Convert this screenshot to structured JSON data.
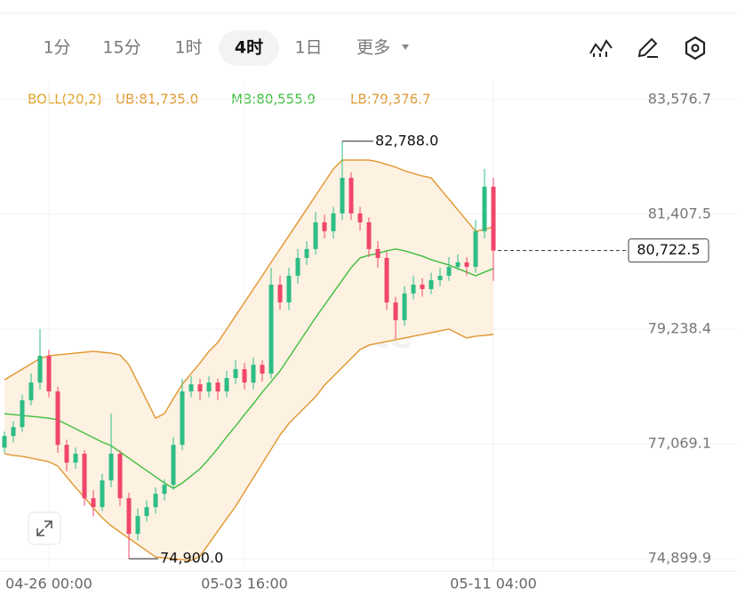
{
  "tabs": [
    "1分",
    "15分",
    "1时",
    "4时",
    "1日",
    "更多"
  ],
  "selected_tab": 3,
  "chart_data": {
    "type": "candlestick",
    "watermark": "Gate",
    "indicator": "BOLL(20,2)",
    "indicator_color": "#e0a020",
    "up_color": "#2dbd85",
    "down_color": "#f0466b",
    "band_fill": "#fdf1e2",
    "categories": [
      null,
      null,
      null,
      null,
      null,
      "04-26 00:00",
      null,
      null,
      null,
      null,
      null,
      null,
      null,
      null,
      null,
      null,
      null,
      null,
      null,
      null,
      null,
      null,
      null,
      null,
      null,
      null,
      null,
      "05-03 16:00",
      null,
      null,
      null,
      null,
      null,
      null,
      null,
      null,
      null,
      null,
      null,
      null,
      null,
      null,
      null,
      null,
      null,
      null,
      null,
      null,
      null,
      null,
      null,
      null,
      null,
      null,
      null,
      "05-11 04:00"
    ],
    "ohlc": [
      [
        77000,
        77300,
        76900,
        77220
      ],
      [
        77220,
        77500,
        77100,
        77388
      ],
      [
        77388,
        78000,
        77300,
        77893
      ],
      [
        77893,
        78400,
        77800,
        78229
      ],
      [
        78229,
        79240,
        78100,
        78734
      ],
      [
        78734,
        78850,
        77950,
        78061
      ],
      [
        78061,
        78150,
        76900,
        77052
      ],
      [
        77052,
        77150,
        76550,
        76716
      ],
      [
        76716,
        77000,
        76600,
        76884
      ],
      [
        76884,
        76950,
        75900,
        76043
      ],
      [
        76043,
        76200,
        75700,
        75875
      ],
      [
        75875,
        76500,
        75800,
        76379
      ],
      [
        76379,
        77640,
        76250,
        76884
      ],
      [
        76884,
        76950,
        75900,
        76043
      ],
      [
        76043,
        76150,
        74900,
        75370
      ],
      [
        75370,
        75850,
        75250,
        75707
      ],
      [
        75707,
        76000,
        75600,
        75875
      ],
      [
        75875,
        76250,
        75750,
        76127
      ],
      [
        76127,
        76400,
        76000,
        76295
      ],
      [
        76295,
        77200,
        76200,
        77052
      ],
      [
        77052,
        78300,
        76950,
        78061
      ],
      [
        78061,
        78350,
        77950,
        78195
      ],
      [
        78195,
        78300,
        77900,
        78061
      ],
      [
        78061,
        78350,
        77950,
        78229
      ],
      [
        78229,
        78300,
        77900,
        78061
      ],
      [
        78061,
        78450,
        77950,
        78313
      ],
      [
        78313,
        78650,
        78200,
        78481
      ],
      [
        78481,
        78600,
        78100,
        78229
      ],
      [
        78229,
        78700,
        78100,
        78565
      ],
      [
        78565,
        78650,
        78250,
        78397
      ],
      [
        78397,
        80400,
        78300,
        80079
      ],
      [
        80079,
        80250,
        79600,
        79743
      ],
      [
        79743,
        80400,
        79600,
        80247
      ],
      [
        80247,
        80750,
        80100,
        80584
      ],
      [
        80584,
        80900,
        80450,
        80752
      ],
      [
        80752,
        81450,
        80650,
        81256
      ],
      [
        81256,
        81400,
        80950,
        81088
      ],
      [
        81088,
        81550,
        80950,
        81424
      ],
      [
        81424,
        82788,
        81300,
        82097
      ],
      [
        82097,
        82200,
        81300,
        81424
      ],
      [
        81424,
        81550,
        81100,
        81256
      ],
      [
        81256,
        81350,
        80600,
        80752
      ],
      [
        80752,
        80900,
        80400,
        80584
      ],
      [
        80584,
        80700,
        79600,
        79743
      ],
      [
        79743,
        79850,
        79050,
        79406
      ],
      [
        79406,
        80050,
        79300,
        79911
      ],
      [
        79911,
        80250,
        79800,
        80079
      ],
      [
        80079,
        80200,
        79850,
        79995
      ],
      [
        79995,
        80300,
        79900,
        80163
      ],
      [
        80163,
        80400,
        80050,
        80247
      ],
      [
        80247,
        80600,
        80150,
        80415
      ],
      [
        80415,
        80650,
        80350,
        80500
      ],
      [
        80500,
        80600,
        80250,
        80415
      ],
      [
        80415,
        81300,
        80300,
        81088
      ],
      [
        81088,
        82265,
        80950,
        81929
      ],
      [
        81929,
        82100,
        80150,
        80722.5
      ]
    ],
    "series": [
      {
        "label": "UB:81,735.0",
        "color": "#e0962d",
        "values": [
          78280,
          78381,
          78482,
          78583,
          78684,
          78734,
          78751,
          78768,
          78785,
          78801,
          78818,
          78801,
          78785,
          78751,
          78566,
          78230,
          77893,
          77557,
          77641,
          77927,
          78196,
          78398,
          78599,
          78818,
          78986,
          79238,
          79491,
          79743,
          79995,
          80247,
          80500,
          80752,
          81004,
          81256,
          81508,
          81761,
          82013,
          82265,
          82433,
          82433,
          82433,
          82433,
          82400,
          82349,
          82299,
          82232,
          82181,
          82131,
          82097,
          81895,
          81693,
          81492,
          81290,
          81088,
          81122,
          81172
        ]
      },
      {
        "label": "MB:80,555.9",
        "color": "#3cbf3c",
        "values": [
          77641,
          77624,
          77607,
          77590,
          77573,
          77557,
          77523,
          77439,
          77355,
          77271,
          77187,
          77103,
          77036,
          76918,
          76800,
          76683,
          76565,
          76447,
          76330,
          76229,
          76330,
          76464,
          76599,
          76784,
          76985,
          77204,
          77406,
          77624,
          77826,
          78045,
          78246,
          78448,
          78700,
          78953,
          79205,
          79457,
          79692,
          79928,
          80163,
          80399,
          80584,
          80634,
          80668,
          80718,
          80752,
          80718,
          80668,
          80617,
          80550,
          80500,
          80449,
          80382,
          80315,
          80247,
          80315,
          80382
        ]
      },
      {
        "label": "LB:79,376.7",
        "color": "#e0962d",
        "values": [
          76884,
          76850,
          76834,
          76800,
          76766,
          76733,
          76649,
          76447,
          76245,
          76060,
          75858,
          75673,
          75522,
          75402,
          75285,
          75167,
          75050,
          74932,
          74915,
          74898,
          74882,
          74865,
          74949,
          75184,
          75423,
          75657,
          75889,
          76161,
          76430,
          76699,
          76968,
          77237,
          77456,
          77624,
          77792,
          77960,
          78179,
          78347,
          78515,
          78684,
          78852,
          78936,
          78970,
          79003,
          79037,
          79070,
          79104,
          79137,
          79171,
          79205,
          79238,
          79154,
          79070,
          79104,
          79120,
          79137
        ]
      }
    ],
    "ylim": [
      74700,
      83860
    ],
    "yticks": [
      {
        "value": 74899.9,
        "label": "74,899.9"
      },
      {
        "value": 77069.1,
        "label": "77,069.1"
      },
      {
        "value": 79238.4,
        "label": "79,238.4"
      },
      {
        "value": 81407.5,
        "label": "81,407.5"
      },
      {
        "value": 83576.7,
        "label": "83,576.7"
      }
    ],
    "high_label": {
      "value": 82788,
      "label": "82,788.0"
    },
    "low_label": {
      "value": 74900,
      "label": "74,900.0"
    },
    "last_price": {
      "value": 80722.5,
      "label": "80,722.5"
    },
    "grid": true
  }
}
